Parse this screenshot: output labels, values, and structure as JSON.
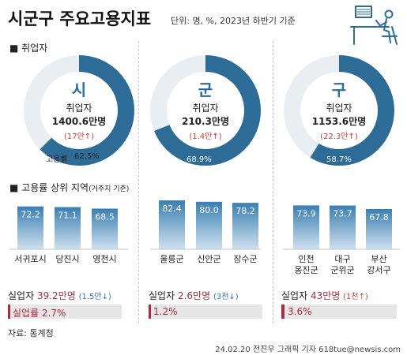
{
  "header": {
    "title": "시군구 주요고용지표",
    "unit": "단위: 명, %, 2023년 하반기 기준"
  },
  "sections": {
    "employed_label": "■ 취업자",
    "top_label": "■ 고용률 상위 지역",
    "top_sub": "(거주지 기준)"
  },
  "colors": {
    "accent": "#2e6c98",
    "ring_light": "#e9eef3",
    "bar_top": "#3a7fb2",
    "bar_bottom": "#cfe0ee",
    "red": "#d43a3a",
    "red_dark": "#a82e3e",
    "blue_arrow": "#2e73c8"
  },
  "groups": [
    {
      "char": "시",
      "employed_label": "취업자",
      "employed_value": "1400.6만명",
      "change": "(17만↑)",
      "rate_label": "고용률",
      "rate_text": "62.5%",
      "unemployed_label": "실업자",
      "unemployed_value": "39.2만명",
      "unemployed_change": "(1.5만↓)",
      "unemployment_rate_text": "실업률 2.7%"
    },
    {
      "char": "군",
      "employed_label": "취업자",
      "employed_value": "210.3만명",
      "change": "(1.4만↑)",
      "rate_label": "",
      "rate_text": "68.9%",
      "unemployed_label": "실업자",
      "unemployed_value": "2.6만명",
      "unemployed_change": "(3천↓)",
      "unemployment_rate_text": "1.2%"
    },
    {
      "char": "구",
      "employed_label": "취업자",
      "employed_value": "1153.6만명",
      "change": "(22.3만↑)",
      "rate_label": "",
      "rate_text": "58.7%",
      "unemployed_label": "실업자",
      "unemployed_value": "43만명",
      "unemployed_change": "(1천↑)",
      "unemployment_rate_text": "3.6%"
    }
  ],
  "chart_data": [
    {
      "type": "pie",
      "categories": [
        "고용률",
        ""
      ],
      "values": [
        62.5,
        37.5
      ]
    },
    {
      "type": "pie",
      "categories": [
        "고용률",
        ""
      ],
      "values": [
        68.9,
        31.1
      ]
    },
    {
      "type": "pie",
      "categories": [
        "고용률",
        ""
      ],
      "values": [
        58.7,
        41.3
      ]
    },
    {
      "type": "bar",
      "title": "고용률 상위 지역 (거주지 기준)",
      "categories": [
        "서귀포시",
        "당진시",
        "영천시",
        "울릉군",
        "신안군",
        "장수군",
        "인천 옹진군",
        "대구 군위군",
        "부산 강서구"
      ],
      "values": [
        72.2,
        71.1,
        68.5,
        82.4,
        80.0,
        78.2,
        73.9,
        73.7,
        67.8
      ],
      "value_labels": [
        "72.2",
        "71.1",
        "68.5",
        "82.4",
        "80.0",
        "78.2",
        "73.9",
        "73.7",
        "67.8"
      ],
      "groups": [
        "시",
        "시",
        "시",
        "군",
        "군",
        "군",
        "구",
        "구",
        "구"
      ]
    },
    {
      "type": "bar",
      "title": "실업률",
      "categories": [
        "시",
        "군",
        "구"
      ],
      "values": [
        2.7,
        1.2,
        3.6
      ]
    }
  ],
  "footer": {
    "source": "자료: 통계청",
    "credit": "24.02.20 전진우 그래픽 기자 618tue@newsis.com"
  }
}
